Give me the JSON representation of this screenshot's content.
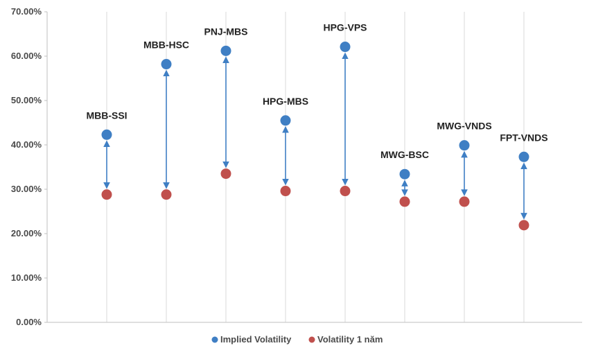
{
  "chart_data": {
    "type": "scatter",
    "categories": [
      "MBB-SSI",
      "MBB-HSC",
      "PNJ-MBS",
      "HPG-MBS",
      "HPG-VPS",
      "MWG-BSC",
      "MWG-VNDS",
      "FPT-VNDS"
    ],
    "series": [
      {
        "name": "Implied Volatility",
        "values": [
          42.3,
          58.2,
          61.2,
          45.5,
          62.1,
          33.4,
          39.9,
          37.3
        ],
        "color": "#3f7fc4"
      },
      {
        "name": "Volatility 1 năm",
        "values": [
          28.8,
          28.8,
          33.5,
          29.6,
          29.6,
          27.2,
          27.2,
          21.9
        ],
        "color": "#c0504d"
      }
    ],
    "y_ticks": [
      "0.00%",
      "10.00%",
      "20.00%",
      "30.00%",
      "40.00%",
      "50.00%",
      "60.00%",
      "70.00%"
    ],
    "ylim": [
      0,
      70
    ],
    "y_format": "percent",
    "arrow_color": "#3f7fc4",
    "grid": "vertical",
    "legend": "bottom",
    "title": "",
    "xlabel": "",
    "ylabel": ""
  }
}
